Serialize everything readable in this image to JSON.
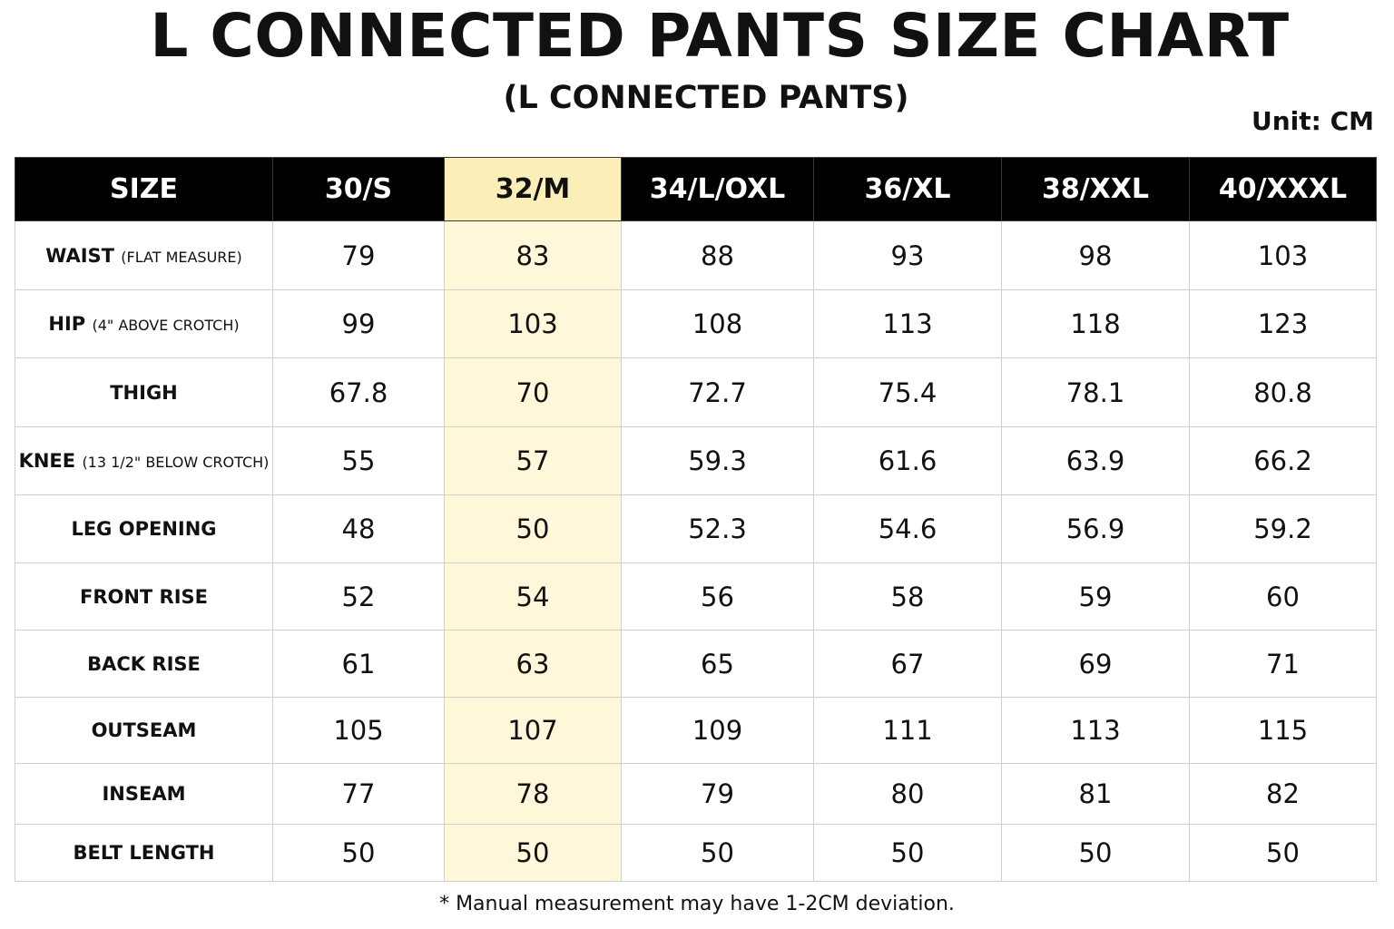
{
  "title": "L CONNECTED PANTS SIZE CHART",
  "subtitle": "(L CONNECTED PANTS)",
  "unit": "Unit: CM",
  "highlight_color": "#fff7d9",
  "header_color": "#000000",
  "table": {
    "header": [
      "SIZE",
      "30/S",
      "32/M",
      "34/L/OXL",
      "36/XL",
      "38/XXL",
      "40/XXXL"
    ],
    "highlighted_size": "32/M",
    "rows": [
      {
        "label": "WAIST",
        "note": "(FLAT MEASURE)",
        "values": [
          "79",
          "83",
          "88",
          "93",
          "98",
          "103"
        ]
      },
      {
        "label": "HIP",
        "note": "(4\" ABOVE CROTCH)",
        "values": [
          "99",
          "103",
          "108",
          "113",
          "118",
          "123"
        ]
      },
      {
        "label": "THIGH",
        "note": "",
        "values": [
          "67.8",
          "70",
          "72.7",
          "75.4",
          "78.1",
          "80.8"
        ]
      },
      {
        "label": "KNEE",
        "note": "(13 1/2\" BELOW CROTCH)",
        "values": [
          "55",
          "57",
          "59.3",
          "61.6",
          "63.9",
          "66.2"
        ]
      },
      {
        "label": "LEG OPENING",
        "note": "",
        "values": [
          "48",
          "50",
          "52.3",
          "54.6",
          "56.9",
          "59.2"
        ]
      },
      {
        "label": "FRONT RISE",
        "note": "",
        "values": [
          "52",
          "54",
          "56",
          "58",
          "59",
          "60"
        ]
      },
      {
        "label": "BACK RISE",
        "note": "",
        "values": [
          "61",
          "63",
          "65",
          "67",
          "69",
          "71"
        ]
      },
      {
        "label": "OUTSEAM",
        "note": "",
        "values": [
          "105",
          "107",
          "109",
          "111",
          "113",
          "115"
        ]
      },
      {
        "label": "INSEAM",
        "note": "",
        "values": [
          "77",
          "78",
          "79",
          "80",
          "81",
          "82"
        ]
      },
      {
        "label": "BELT LENGTH",
        "note": "",
        "values": [
          "50",
          "50",
          "50",
          "50",
          "50",
          "50"
        ]
      }
    ]
  },
  "footnote": "* Manual measurement may have 1-2CM deviation."
}
